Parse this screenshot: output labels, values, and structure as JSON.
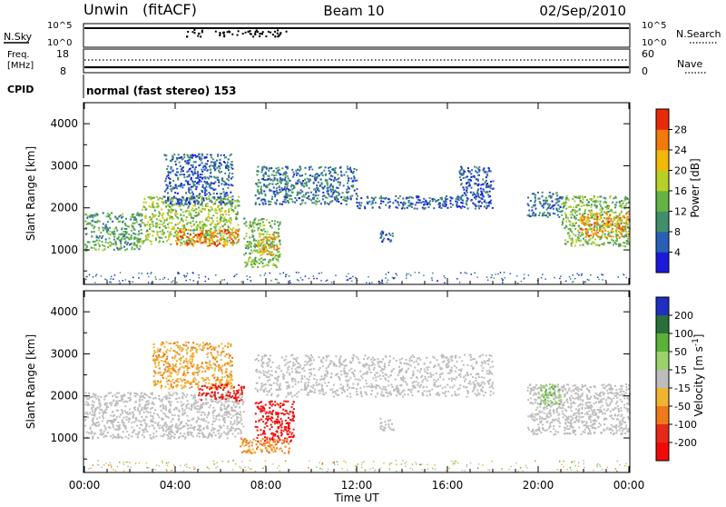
{
  "header": {
    "station": "Unwin",
    "mode": "(fitACF)",
    "beam": "Beam 10",
    "date": "02/Sep/2010"
  },
  "top_panels": {
    "nsky_label": "N.Sky",
    "nsky_ticks": [
      "10^5",
      "10^0"
    ],
    "nsearch_label": "N.Search",
    "nsearch_ticks": [
      "10^5",
      "10^0"
    ],
    "freq_label": "Freq.",
    "freq_unit": "[MHz]",
    "freq_ticks": [
      "18",
      "8"
    ],
    "nave_label": "Nave",
    "nave_ticks": [
      "60",
      "0"
    ],
    "cpid_label": "CPID",
    "cpid_value": "normal (fast stereo) 153"
  },
  "colors": {
    "ground_scatter_grey": "#bdbdbd",
    "background": "#ffffff"
  },
  "chart_data": [
    {
      "type": "heatmap",
      "title": "",
      "xlabel": "",
      "ylabel": "Slant Range [km]",
      "x_ticks": [
        "00:00",
        "04:00",
        "08:00",
        "12:00",
        "16:00",
        "20:00",
        "00:00"
      ],
      "xlim_hours": [
        0,
        24
      ],
      "y_ticks": [
        1000,
        2000,
        3000,
        4000
      ],
      "ylim": [
        180,
        4500
      ],
      "colorbar": {
        "label": "Power [dB]",
        "ticks": [
          4,
          8,
          12,
          16,
          20,
          24,
          28
        ],
        "range": [
          0,
          32
        ],
        "colors": [
          "#1a1adc",
          "#2a5fb8",
          "#3f8f6a",
          "#64b344",
          "#b8cf2a",
          "#f2b80a",
          "#f07a0a",
          "#e82a0a"
        ]
      },
      "regions": [
        {
          "t0": 0.0,
          "t1": 2.5,
          "r0": 1000,
          "r1": 1900,
          "power": 12
        },
        {
          "t0": 2.5,
          "t1": 6.8,
          "r0": 1150,
          "r1": 2300,
          "power": 16
        },
        {
          "t0": 4.0,
          "t1": 6.8,
          "r0": 1100,
          "r1": 1500,
          "power": 26
        },
        {
          "t0": 3.5,
          "t1": 6.5,
          "r0": 2100,
          "r1": 3300,
          "power": 6
        },
        {
          "t0": 7.0,
          "t1": 8.6,
          "r0": 600,
          "r1": 1800,
          "power": 14
        },
        {
          "t0": 7.6,
          "t1": 8.6,
          "r0": 900,
          "r1": 1400,
          "power": 22
        },
        {
          "t0": 7.5,
          "t1": 12.0,
          "r0": 2100,
          "r1": 3000,
          "power": 8
        },
        {
          "t0": 12.0,
          "t1": 16.5,
          "r0": 2000,
          "r1": 2300,
          "power": 6
        },
        {
          "t0": 16.5,
          "t1": 18.0,
          "r0": 2000,
          "r1": 3000,
          "power": 6
        },
        {
          "t0": 13.0,
          "t1": 13.6,
          "r0": 1200,
          "r1": 1500,
          "power": 6
        },
        {
          "t0": 19.5,
          "t1": 21.0,
          "r0": 1800,
          "r1": 2400,
          "power": 8
        },
        {
          "t0": 21.0,
          "t1": 24.0,
          "r0": 1100,
          "r1": 2300,
          "power": 14
        },
        {
          "t0": 21.8,
          "t1": 24.0,
          "r0": 1300,
          "r1": 1900,
          "power": 24
        }
      ]
    },
    {
      "type": "heatmap",
      "title": "",
      "xlabel": "Time UT",
      "ylabel": "Slant Range [km]",
      "x_ticks": [
        "00:00",
        "04:00",
        "08:00",
        "12:00",
        "16:00",
        "20:00",
        "00:00"
      ],
      "xlim_hours": [
        0,
        24
      ],
      "y_ticks": [
        1000,
        2000,
        3000,
        4000
      ],
      "ylim": [
        180,
        4500
      ],
      "colorbar": {
        "label": "Velocity [m s^-1]",
        "ticks": [
          200,
          100,
          50,
          15,
          -15,
          -50,
          -100,
          -200
        ],
        "range": [
          -250,
          250
        ],
        "colors": [
          "#1f2fbf",
          "#2a6f3a",
          "#5bb13a",
          "#9ad36a",
          "#bdbdbd",
          "#f0b431",
          "#f07a1a",
          "#e8281a",
          "#f20a0a"
        ]
      },
      "regions": [
        {
          "t0": 0.0,
          "t1": 7.0,
          "r0": 1000,
          "r1": 2100,
          "velocity": 0,
          "ground_scatter": true
        },
        {
          "t0": 3.0,
          "t1": 6.5,
          "r0": 2200,
          "r1": 3300,
          "velocity": -40
        },
        {
          "t0": 5.0,
          "t1": 7.0,
          "r0": 1900,
          "r1": 2300,
          "velocity": -200
        },
        {
          "t0": 7.5,
          "t1": 9.2,
          "r0": 900,
          "r1": 1900,
          "velocity": -220
        },
        {
          "t0": 6.8,
          "t1": 9.0,
          "r0": 650,
          "r1": 1000,
          "velocity": -60
        },
        {
          "t0": 7.5,
          "t1": 18.0,
          "r0": 2000,
          "r1": 3000,
          "velocity": 0,
          "ground_scatter": true
        },
        {
          "t0": 13.0,
          "t1": 13.6,
          "r0": 1200,
          "r1": 1500,
          "velocity": 0,
          "ground_scatter": true
        },
        {
          "t0": 19.5,
          "t1": 24.0,
          "r0": 1100,
          "r1": 2300,
          "velocity": 0,
          "ground_scatter": true
        },
        {
          "t0": 20.0,
          "t1": 21.0,
          "r0": 1800,
          "r1": 2300,
          "velocity": 40
        }
      ]
    }
  ]
}
